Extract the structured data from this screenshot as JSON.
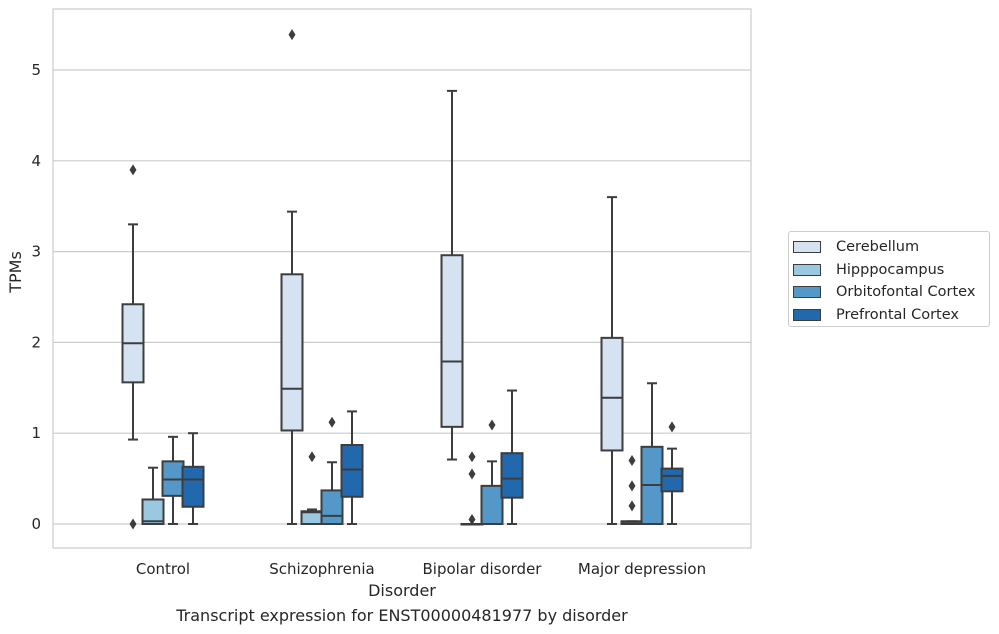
{
  "chart_data": {
    "type": "box",
    "xlabel": "Disorder",
    "ylabel": "TPMs",
    "ylim": [
      -0.25,
      5.67
    ],
    "yticks": [
      0,
      1,
      2,
      3,
      4,
      5
    ],
    "grid": true,
    "legend_position": "right",
    "categories": [
      "Control",
      "Schizophrenia",
      "Bipolar disorder",
      "Major depression"
    ],
    "series": [
      {
        "name": "Cerebellum",
        "color": "#d4e2f1",
        "boxes": [
          {
            "whislo": 0.93,
            "q1": 1.56,
            "med": 1.99,
            "q3": 2.42,
            "whishi": 3.3,
            "fliers": [
              3.9,
              0.0
            ]
          },
          {
            "whislo": 0.0,
            "q1": 1.03,
            "med": 1.49,
            "q3": 2.75,
            "whishi": 3.44,
            "fliers": [
              5.39
            ]
          },
          {
            "whislo": 0.71,
            "q1": 1.07,
            "med": 1.79,
            "q3": 2.96,
            "whishi": 4.77,
            "fliers": []
          },
          {
            "whislo": 0.0,
            "q1": 0.81,
            "med": 1.39,
            "q3": 2.05,
            "whishi": 3.6,
            "fliers": []
          }
        ]
      },
      {
        "name": "Hipppocampus",
        "color": "#9ac8e0",
        "boxes": [
          {
            "whislo": 0.0,
            "q1": 0.0,
            "med": 0.03,
            "q3": 0.27,
            "whishi": 0.62,
            "fliers": []
          },
          {
            "whislo": 0.0,
            "q1": 0.0,
            "med": 0.13,
            "q3": 0.14,
            "whishi": 0.16,
            "fliers": [
              0.74
            ]
          },
          {
            "whislo": 0.0,
            "q1": 0.0,
            "med": 0.0,
            "q3": 0.0,
            "whishi": 0.0,
            "fliers": [
              0.74,
              0.55,
              0.05
            ]
          },
          {
            "whislo": 0.0,
            "q1": 0.0,
            "med": 0.01,
            "q3": 0.03,
            "whishi": 0.03,
            "fliers": [
              0.7,
              0.42,
              0.2
            ]
          }
        ]
      },
      {
        "name": "Orbitofontal Cortex",
        "color": "#5498c9",
        "boxes": [
          {
            "whislo": 0.0,
            "q1": 0.31,
            "med": 0.49,
            "q3": 0.69,
            "whishi": 0.96,
            "fliers": []
          },
          {
            "whislo": 0.0,
            "q1": 0.0,
            "med": 0.09,
            "q3": 0.37,
            "whishi": 0.68,
            "fliers": [
              1.12
            ]
          },
          {
            "whislo": 0.0,
            "q1": 0.0,
            "med": 0.0,
            "q3": 0.42,
            "whishi": 0.69,
            "fliers": [
              1.09
            ]
          },
          {
            "whislo": 0.0,
            "q1": 0.0,
            "med": 0.43,
            "q3": 0.85,
            "whishi": 1.55,
            "fliers": []
          }
        ]
      },
      {
        "name": "Prefrontal Cortex",
        "color": "#2268ac",
        "boxes": [
          {
            "whislo": 0.0,
            "q1": 0.19,
            "med": 0.49,
            "q3": 0.63,
            "whishi": 1.0,
            "fliers": []
          },
          {
            "whislo": 0.0,
            "q1": 0.3,
            "med": 0.6,
            "q3": 0.87,
            "whishi": 1.24,
            "fliers": []
          },
          {
            "whislo": 0.0,
            "q1": 0.29,
            "med": 0.5,
            "q3": 0.78,
            "whishi": 1.47,
            "fliers": []
          },
          {
            "whislo": 0.0,
            "q1": 0.36,
            "med": 0.53,
            "q3": 0.61,
            "whishi": 0.83,
            "fliers": [
              1.07
            ]
          }
        ]
      }
    ]
  },
  "caption": "Transcript expression for ENST00000481977 by disorder"
}
